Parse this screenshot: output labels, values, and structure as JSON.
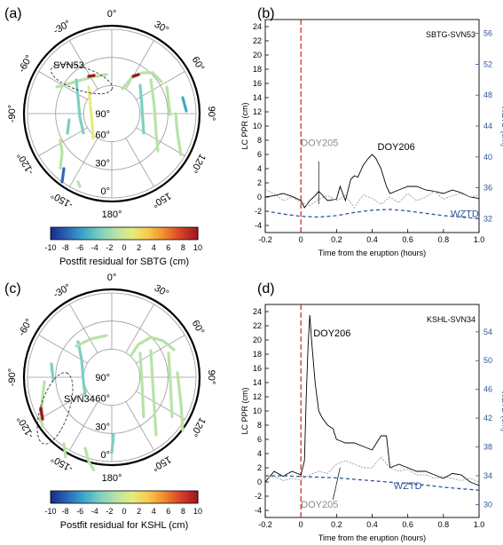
{
  "figure": {
    "colorbar_ticks": [
      "-10",
      "-8",
      "-6",
      "-4",
      "-2",
      "0",
      "2",
      "4",
      "6",
      "8",
      "10"
    ],
    "colorbar_colors": [
      "#1a2f8f",
      "#2a6ab8",
      "#3fa8c9",
      "#7dcfc2",
      "#b7e3a6",
      "#e6ec7c",
      "#f6c94e",
      "#ef8a2e",
      "#d9402a",
      "#9e1b1e"
    ],
    "ppr_line_color": "#000000",
    "other_day_color": "#9a9a9a",
    "wztd_color": "#2f5597",
    "eruption_line_color": "#d22020",
    "x_axis_label": "Time from the eruption (hours)",
    "y_left_label": "LC PPR (cm)",
    "y_right_label": "WZTD (cm)",
    "x_ticks": [
      "-0.2",
      "0",
      "0.2",
      "0.4",
      "0.6",
      "0.8",
      "1.0"
    ],
    "polar_ticks": [
      "0°",
      "30°",
      "60°",
      "90°",
      "120°",
      "150°",
      "180°",
      "-150°",
      "-120°",
      "-90°",
      "-60°",
      "-30°"
    ],
    "elev_ticks": [
      "90°",
      "60°",
      "30°",
      "0°"
    ]
  },
  "panels": {
    "a": {
      "label": "(a)",
      "satellite_label": "SVN53",
      "colorbar_title": "Postfit residual for SBTG (cm)"
    },
    "c": {
      "label": "(c)",
      "satellite_label": "SVN34",
      "colorbar_title": "Postfit residual for KSHL (cm)"
    },
    "b": {
      "label": "(b)",
      "site_sat": "SBTG-SVN53",
      "doy_primary": "DOY206",
      "doy_secondary": "DOY205",
      "wztd_label": "WZTD",
      "y_left_ticks": [
        "-4",
        "-2",
        "0",
        "2",
        "4",
        "6",
        "8",
        "10",
        "12",
        "14",
        "16",
        "18",
        "20",
        "22",
        "24"
      ],
      "y_right_ticks": [
        "32",
        "36",
        "40",
        "44",
        "48",
        "52",
        "56"
      ]
    },
    "d": {
      "label": "(d)",
      "site_sat": "KSHL-SVN34",
      "doy_primary": "DOY206",
      "doy_secondary": "DOY205",
      "wztd_label": "WZTD",
      "y_left_ticks": [
        "-4",
        "-2",
        "0",
        "2",
        "4",
        "6",
        "8",
        "10",
        "12",
        "14",
        "16",
        "18",
        "20",
        "22",
        "24"
      ],
      "y_right_ticks": [
        "30",
        "34",
        "38",
        "42",
        "46",
        "50",
        "54"
      ]
    }
  },
  "chart_data": [
    {
      "type": "line",
      "panel": "b",
      "xlabel": "Time from the eruption (hours)",
      "ylabel": "LC PPR (cm)",
      "y2label": "WZTD (cm)",
      "xlim": [
        -0.2,
        1.0
      ],
      "ylim": [
        -5,
        25
      ],
      "y2lim": [
        30.2,
        57.8
      ],
      "series": [
        {
          "name": "DOY206",
          "x": [
            -0.2,
            -0.15,
            -0.1,
            -0.05,
            0.0,
            0.02,
            0.05,
            0.08,
            0.1,
            0.15,
            0.2,
            0.22,
            0.25,
            0.28,
            0.3,
            0.32,
            0.35,
            0.38,
            0.4,
            0.42,
            0.45,
            0.48,
            0.5,
            0.55,
            0.6,
            0.65,
            0.7,
            0.75,
            0.8,
            0.85,
            0.9,
            0.95,
            1.0
          ],
          "y": [
            0,
            0.2,
            0.5,
            0.1,
            -0.5,
            -1.5,
            -0.5,
            0.2,
            0.8,
            -0.5,
            -0.3,
            1.5,
            -0.5,
            2.5,
            3.0,
            2.8,
            4.5,
            5.5,
            6.0,
            5.5,
            4.0,
            1.5,
            0.5,
            1.0,
            1.5,
            1.5,
            1.0,
            0.8,
            0.5,
            1.0,
            0.6,
            0.0,
            -0.2
          ]
        },
        {
          "name": "DOY205",
          "x": [
            -0.2,
            -0.15,
            -0.1,
            -0.05,
            0.0,
            0.05,
            0.1,
            0.15,
            0.2,
            0.25,
            0.3,
            0.35,
            0.4,
            0.45,
            0.5,
            0.55,
            0.6,
            0.65,
            0.7,
            0.75,
            0.8,
            0.85,
            0.9,
            0.95,
            1.0
          ],
          "y": [
            1.0,
            0.5,
            -0.5,
            0.0,
            -0.8,
            -1.2,
            -0.3,
            0.2,
            -0.5,
            0.2,
            -1.5,
            0.3,
            -0.2,
            -1.0,
            0.0,
            -0.8,
            0.5,
            -0.5,
            0.0,
            0.8,
            -0.3,
            0.2,
            0.5,
            0.0,
            0.3
          ]
        },
        {
          "name": "WZTD",
          "axis": "right",
          "x": [
            -0.2,
            -0.1,
            0.0,
            0.1,
            0.2,
            0.3,
            0.4,
            0.5,
            0.6,
            0.7,
            0.8,
            0.9,
            1.0
          ],
          "y": [
            33.0,
            32.6,
            32.3,
            32.2,
            32.4,
            32.8,
            33.1,
            33.2,
            33.0,
            32.7,
            32.4,
            32.2,
            32.0
          ]
        }
      ]
    },
    {
      "type": "line",
      "panel": "d",
      "xlabel": "Time from the eruption (hours)",
      "ylabel": "LC PPR (cm)",
      "y2label": "WZTD (cm)",
      "xlim": [
        -0.2,
        1.0
      ],
      "ylim": [
        -5,
        25
      ],
      "y2lim": [
        28.2,
        57.8
      ],
      "series": [
        {
          "name": "DOY206",
          "x": [
            -0.2,
            -0.15,
            -0.1,
            -0.05,
            0.0,
            0.02,
            0.03,
            0.04,
            0.05,
            0.06,
            0.08,
            0.1,
            0.12,
            0.15,
            0.18,
            0.2,
            0.25,
            0.3,
            0.35,
            0.4,
            0.45,
            0.48,
            0.5,
            0.55,
            0.6,
            0.65,
            0.7,
            0.75,
            0.8,
            0.85,
            0.9,
            0.95,
            1.0
          ],
          "y": [
            0,
            1.5,
            0.8,
            1.5,
            1.0,
            3.0,
            12.0,
            19.0,
            23.5,
            20.0,
            14.0,
            10.0,
            9.0,
            8.0,
            7.5,
            6.0,
            5.5,
            5.5,
            5.0,
            4.5,
            6.5,
            6.5,
            2.0,
            2.5,
            2.0,
            1.5,
            1.5,
            1.0,
            0.5,
            1.2,
            1.0,
            0.0,
            -0.5
          ]
        },
        {
          "name": "DOY205",
          "x": [
            -0.2,
            -0.15,
            -0.1,
            -0.05,
            0.0,
            0.05,
            0.1,
            0.15,
            0.2,
            0.25,
            0.3,
            0.35,
            0.4,
            0.45,
            0.5,
            0.55,
            0.6,
            0.65,
            0.7,
            0.75,
            0.8,
            0.85,
            0.9,
            0.95,
            1.0
          ],
          "y": [
            0.5,
            0.8,
            0.2,
            0.5,
            0.3,
            1.0,
            1.5,
            1.2,
            2.5,
            3.0,
            2.5,
            2.0,
            2.0,
            3.5,
            2.0,
            1.5,
            1.8,
            1.0,
            1.0,
            0.5,
            0.8,
            0.5,
            0.2,
            0.5,
            0.0
          ]
        },
        {
          "name": "WZTD",
          "axis": "right",
          "x": [
            -0.2,
            -0.1,
            0.0,
            0.1,
            0.2,
            0.3,
            0.4,
            0.5,
            0.6,
            0.7,
            0.8,
            0.9,
            1.0
          ],
          "y": [
            34.0,
            34.0,
            33.9,
            33.8,
            33.7,
            33.5,
            33.3,
            33.1,
            32.9,
            32.7,
            32.4,
            32.2,
            32.0
          ]
        }
      ]
    }
  ]
}
